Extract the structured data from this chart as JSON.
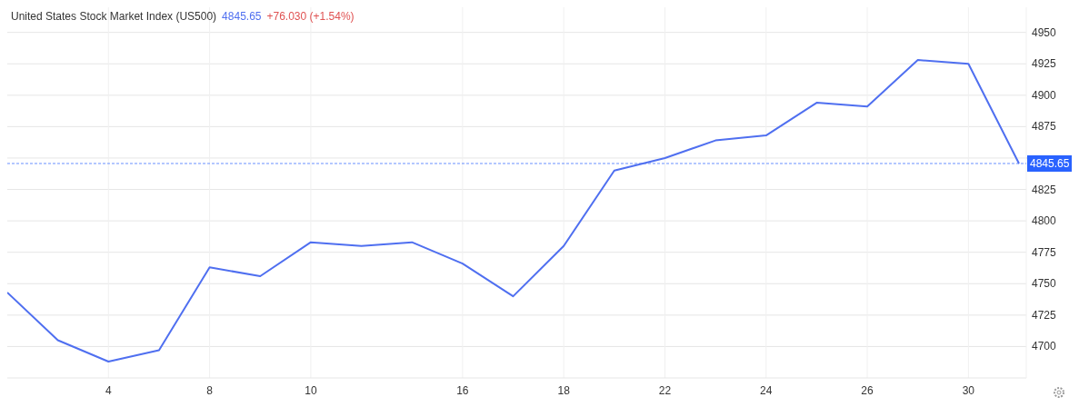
{
  "chart_data": {
    "type": "line",
    "title": "United States Stock Market Index (US500)",
    "annotations": [
      "4845.65",
      "+76.030 (+1.54%)"
    ],
    "categories": [
      null,
      null,
      "4",
      null,
      "8",
      null,
      "10",
      null,
      null,
      "16",
      null,
      "18",
      null,
      "22",
      null,
      "24",
      null,
      "26",
      null,
      "30",
      null
    ],
    "series": [
      {
        "color": "#4f6ff0",
        "values": [
          4743,
          4705,
          4688,
          4697,
          4763,
          4756,
          4783,
          4780,
          4783,
          4766,
          4740,
          4780,
          4840,
          4850,
          4864,
          4868,
          4894,
          4891,
          4928,
          4925,
          4845.65
        ]
      }
    ],
    "ylim": [
      4675,
      4970
    ],
    "yticks": [
      4700,
      4725,
      4750,
      4775,
      4800,
      4825,
      {
        "value": 4850,
        "label": null
      },
      4875,
      4900,
      4925,
      4950
    ],
    "ref_lines": [
      {
        "axis": "y",
        "value": 4845.65,
        "label": "4845.65",
        "color": "#2962ff",
        "line_style": "dashed"
      }
    ],
    "grid": true
  }
}
